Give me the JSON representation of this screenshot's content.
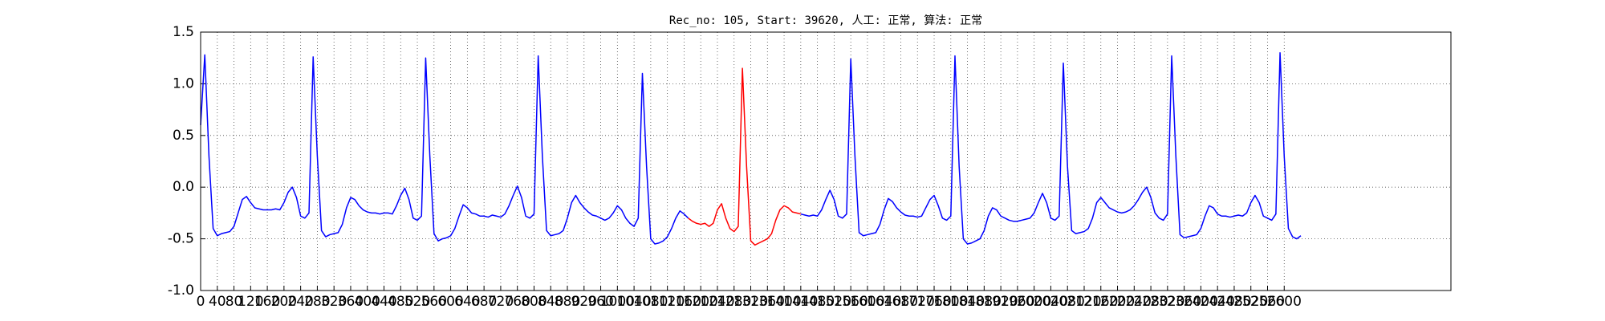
{
  "chart_data": {
    "type": "line",
    "title": "Rec_no: 105, Start: 39620, 人工: 正常, 算法: 正常",
    "xlim": [
      0,
      3000
    ],
    "xticks": [
      0,
      40,
      80,
      120,
      160,
      200,
      240,
      280,
      320,
      360,
      400,
      440,
      480,
      520,
      560,
      600,
      640,
      680,
      720,
      760,
      800,
      840,
      880,
      920,
      960,
      1000,
      1040,
      1080,
      1120,
      1160,
      1200,
      1240,
      1280,
      1320,
      1360,
      1400,
      1440,
      1480,
      1520,
      1560,
      1600,
      1640,
      1680,
      1720,
      1760,
      1800,
      1840,
      1880,
      1920,
      1960,
      2000,
      2040,
      2080,
      2120,
      2160,
      2200,
      2240,
      2280,
      2320,
      2360,
      2400,
      2440,
      2480,
      2520,
      2560,
      2600
    ],
    "ylim": [
      -1,
      1.5
    ],
    "yticks": [
      {
        "value": -1,
        "label": "-1.0"
      },
      {
        "value": -0.5,
        "label": "-0.5"
      },
      {
        "value": 0,
        "label": "0.0"
      },
      {
        "value": 0.5,
        "label": "0.5"
      },
      {
        "value": 1,
        "label": "1.0"
      },
      {
        "value": 1.5,
        "label": "1.5"
      }
    ],
    "grid": true,
    "series": [
      {
        "color": "#0000ff",
        "x": [
          0,
          10,
          20,
          30,
          40,
          50,
          60,
          70,
          80,
          90,
          100,
          110,
          120,
          130,
          140,
          150,
          160,
          170,
          180,
          190,
          200,
          210,
          220,
          230,
          240,
          250,
          260,
          270,
          280,
          290,
          300,
          310,
          320,
          330,
          340,
          350,
          360,
          370,
          380,
          390,
          400,
          410,
          420,
          430,
          440,
          450,
          460,
          470,
          480,
          490,
          500,
          510,
          520,
          530,
          540,
          550,
          560,
          570,
          580,
          590,
          600,
          610,
          620,
          630,
          640,
          650,
          660,
          670,
          680,
          690,
          700,
          710,
          720,
          730,
          740,
          750,
          760,
          770,
          780,
          790,
          800,
          810,
          820,
          830,
          840,
          850,
          860,
          870,
          880,
          890,
          900,
          910,
          920,
          930,
          940,
          950,
          960,
          970,
          980,
          990,
          1000,
          1010,
          1020,
          1030,
          1040,
          1050,
          1060,
          1070,
          1080,
          1090,
          1100,
          1110,
          1120,
          1130,
          1140,
          1150,
          1160,
          1170,
          1180,
          1190,
          1200,
          1210,
          1220,
          1230,
          1240,
          1250,
          1260,
          1270,
          1280,
          1290,
          1300,
          1310,
          1320,
          1330,
          1340,
          1350,
          1360,
          1370,
          1380,
          1390,
          1400,
          1410,
          1420,
          1430,
          1440,
          1450,
          1460,
          1470,
          1480,
          1490,
          1500,
          1510,
          1520,
          1530,
          1540,
          1550,
          1560,
          1570,
          1580,
          1590,
          1600,
          1610,
          1620,
          1630,
          1640,
          1650,
          1660,
          1670,
          1680,
          1690,
          1700,
          1710,
          1720,
          1730,
          1740,
          1750,
          1760,
          1770,
          1780,
          1790,
          1800,
          1810,
          1820,
          1830,
          1840,
          1850,
          1860,
          1870,
          1880,
          1890,
          1900,
          1910,
          1920,
          1930,
          1940,
          1950,
          1960,
          1970,
          1980,
          1990,
          2000,
          2010,
          2020,
          2030,
          2040,
          2050,
          2060,
          2070,
          2080,
          2090,
          2100,
          2110,
          2120,
          2130,
          2140,
          2150,
          2160,
          2170,
          2180,
          2190,
          2200,
          2210,
          2220,
          2230,
          2240,
          2250,
          2260,
          2270,
          2280,
          2290,
          2300,
          2310,
          2320,
          2330,
          2340,
          2350,
          2360,
          2370,
          2380,
          2390,
          2400,
          2410,
          2420,
          2430,
          2440,
          2450,
          2460,
          2470,
          2480,
          2490,
          2500,
          2510,
          2520,
          2530,
          2540,
          2550,
          2560,
          2570,
          2580,
          2590,
          2600,
          2610,
          2620,
          2630,
          2640
        ],
        "values": [
          0.6,
          1.28,
          0.3,
          -0.4,
          -0.47,
          -0.45,
          -0.44,
          -0.43,
          -0.38,
          -0.25,
          -0.12,
          -0.09,
          -0.15,
          -0.2,
          -0.21,
          -0.22,
          -0.22,
          -0.22,
          -0.21,
          -0.22,
          -0.15,
          -0.05,
          0.0,
          -0.1,
          -0.28,
          -0.3,
          -0.25,
          1.26,
          0.3,
          -0.42,
          -0.48,
          -0.46,
          -0.45,
          -0.44,
          -0.36,
          -0.2,
          -0.1,
          -0.12,
          -0.18,
          -0.22,
          -0.24,
          -0.25,
          -0.25,
          -0.26,
          -0.25,
          -0.25,
          -0.26,
          -0.18,
          -0.08,
          -0.01,
          -0.12,
          -0.3,
          -0.32,
          -0.28,
          1.25,
          0.3,
          -0.45,
          -0.52,
          -0.5,
          -0.49,
          -0.47,
          -0.4,
          -0.28,
          -0.17,
          -0.2,
          -0.25,
          -0.26,
          -0.28,
          -0.28,
          -0.29,
          -0.27,
          -0.28,
          -0.29,
          -0.26,
          -0.18,
          -0.08,
          0.01,
          -0.1,
          -0.28,
          -0.3,
          -0.26,
          1.27,
          0.3,
          -0.42,
          -0.47,
          -0.46,
          -0.45,
          -0.42,
          -0.3,
          -0.15,
          -0.08,
          -0.15,
          -0.2,
          -0.24,
          -0.27,
          -0.28,
          -0.3,
          -0.32,
          -0.3,
          -0.25,
          -0.18,
          -0.22,
          -0.3,
          -0.35,
          -0.38,
          -0.3,
          1.1,
          0.2,
          -0.5,
          -0.55,
          -0.54,
          -0.52,
          -0.48,
          -0.4,
          -0.3,
          -0.23,
          -0.26,
          -0.3,
          null,
          null,
          null,
          null,
          null,
          null,
          null,
          null,
          null,
          null,
          null,
          null,
          null,
          null,
          null,
          null,
          null,
          null,
          null,
          null,
          null,
          null,
          null,
          null,
          null,
          null,
          -0.26,
          -0.27,
          -0.28,
          -0.27,
          -0.28,
          -0.22,
          -0.12,
          -0.03,
          -0.12,
          -0.28,
          -0.3,
          -0.26,
          1.24,
          0.3,
          -0.44,
          -0.47,
          -0.46,
          -0.45,
          -0.44,
          -0.36,
          -0.22,
          -0.11,
          -0.14,
          -0.2,
          -0.24,
          -0.27,
          -0.28,
          -0.28,
          -0.29,
          -0.28,
          -0.2,
          -0.12,
          -0.08,
          -0.18,
          -0.3,
          -0.32,
          -0.28,
          1.27,
          0.2,
          -0.5,
          -0.55,
          -0.54,
          -0.52,
          -0.5,
          -0.42,
          -0.28,
          -0.2,
          -0.22,
          -0.28,
          -0.3,
          -0.32,
          -0.33,
          -0.33,
          -0.32,
          -0.31,
          -0.3,
          -0.25,
          -0.15,
          -0.06,
          -0.15,
          -0.3,
          -0.32,
          -0.28,
          1.2,
          0.2,
          -0.42,
          -0.45,
          -0.44,
          -0.43,
          -0.4,
          -0.3,
          -0.15,
          -0.1,
          -0.15,
          -0.2,
          -0.22,
          -0.24,
          -0.25,
          -0.24,
          -0.22,
          -0.18,
          -0.12,
          -0.05,
          0.0,
          -0.1,
          -0.25,
          -0.3,
          -0.32,
          -0.26,
          1.27,
          0.3,
          -0.46,
          -0.49,
          -0.48,
          -0.47,
          -0.46,
          -0.4,
          -0.28,
          -0.18,
          -0.2,
          -0.26,
          -0.28,
          -0.28,
          -0.29,
          -0.28,
          -0.27,
          -0.28,
          -0.25,
          -0.15,
          -0.08,
          -0.15,
          -0.28,
          -0.3,
          -0.32,
          -0.26,
          1.3,
          0.3,
          -0.4,
          -0.48,
          -0.5,
          -0.47
        ]
      },
      {
        "color": "#ff0000",
        "x": [
          1170,
          1180,
          1190,
          1200,
          1210,
          1220,
          1230,
          1240,
          1250,
          1260,
          1270,
          1280,
          1290,
          1300,
          1310,
          1320,
          1330,
          1340,
          1350,
          1360,
          1370,
          1380,
          1390,
          1400,
          1410,
          1420,
          1430,
          1440
        ],
        "values": [
          -0.3,
          -0.33,
          -0.35,
          -0.36,
          -0.35,
          -0.38,
          -0.35,
          -0.22,
          -0.16,
          -0.3,
          -0.4,
          -0.43,
          -0.38,
          1.15,
          0.2,
          -0.52,
          -0.56,
          -0.54,
          -0.52,
          -0.5,
          -0.45,
          -0.32,
          -0.22,
          -0.18,
          -0.2,
          -0.24,
          -0.25,
          -0.26
        ]
      }
    ]
  }
}
